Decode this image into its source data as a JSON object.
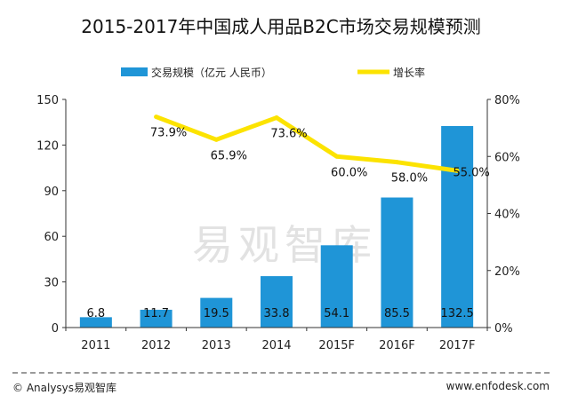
{
  "chart_data": {
    "type": "bar",
    "title": "2015-2017年中国成人用品B2C市场交易规模预测",
    "categories": [
      "2011",
      "2012",
      "2013",
      "2014",
      "2015F",
      "2016F",
      "2017F"
    ],
    "series": [
      {
        "name": "交易规模（亿元 人民币）",
        "type": "bar",
        "axis": "left",
        "values": [
          6.8,
          11.7,
          19.5,
          33.8,
          54.1,
          85.5,
          132.5
        ],
        "labels": [
          "6.8",
          "11.7",
          "19.5",
          "33.8",
          "54.1",
          "85.5",
          "132.5"
        ],
        "color": "#1f95d7"
      },
      {
        "name": "增长率",
        "type": "line",
        "axis": "right",
        "values": [
          null,
          73.9,
          65.9,
          73.6,
          60.0,
          58.0,
          55.0
        ],
        "labels": [
          "",
          "73.9%",
          "65.9%",
          "73.6%",
          "60.0%",
          "58.0%",
          "55.0%"
        ],
        "color": "#fce300"
      }
    ],
    "left_axis": {
      "ylim": [
        0,
        150
      ],
      "ticks": [
        0,
        30,
        60,
        90,
        120,
        150
      ],
      "tick_labels": [
        "0",
        "30",
        "60",
        "90",
        "120",
        "150"
      ]
    },
    "right_axis": {
      "ylim": [
        0,
        80
      ],
      "ticks": [
        0,
        20,
        40,
        60,
        80
      ],
      "tick_labels": [
        "0%",
        "20%",
        "40%",
        "60%",
        "80%"
      ]
    },
    "grid": false,
    "legend_position": "top"
  },
  "watermark": "易观智库",
  "footer": {
    "copyright": "© Analysys易观智库",
    "website": "www.enfodesk.com"
  }
}
